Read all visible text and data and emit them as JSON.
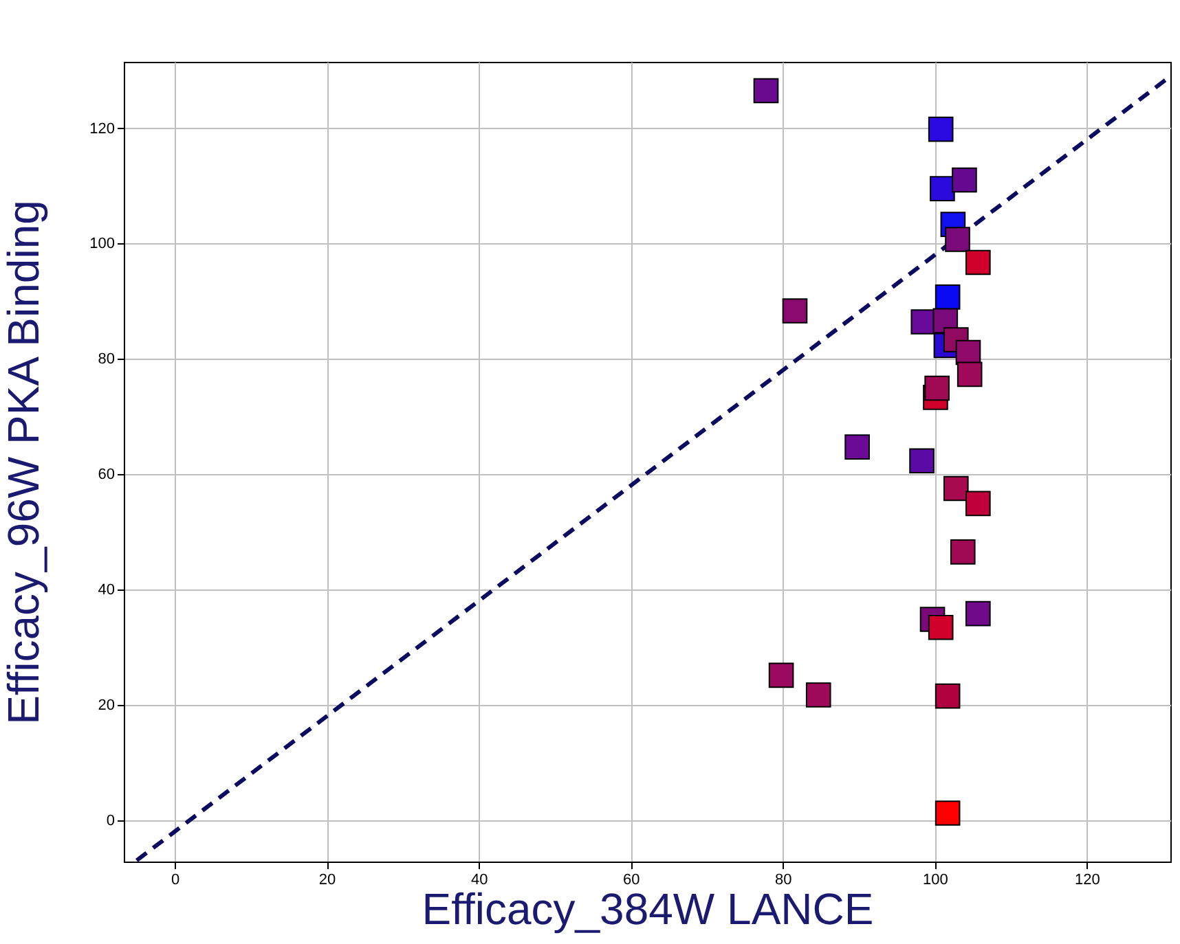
{
  "chart_data": {
    "type": "scatter",
    "xlabel": "Efficacy_384W LANCE",
    "ylabel": "Efficacy_96W PKA Binding",
    "xlim": [
      -6.7,
      131
    ],
    "ylim": [
      -7.2,
      131.5
    ],
    "xticks": [
      0,
      20,
      40,
      60,
      80,
      100,
      120
    ],
    "yticks": [
      0,
      20,
      40,
      60,
      80,
      100,
      120
    ],
    "grid": true,
    "series": [
      {
        "type": "line",
        "line_style": "dashed",
        "color": "#0a0a60",
        "x": [
          -5,
          131
        ],
        "values": [
          -7,
          129
        ]
      },
      {
        "marker": "square",
        "x": [
          77.8,
          100.8,
          101.0,
          103.9,
          102.4,
          103.0,
          105.7,
          101.7,
          98.5,
          101.4,
          101.5,
          102.8,
          104.4,
          104.6,
          81.6,
          100.1,
          100.3,
          89.8,
          98.3,
          102.8,
          105.7,
          103.7,
          99.7,
          100.8,
          105.7,
          79.8,
          84.7,
          101.7,
          101.7
        ],
        "values": [
          126.5,
          119.8,
          109.5,
          111.0,
          103.3,
          100.7,
          96.7,
          90.7,
          86.4,
          86.6,
          82.3,
          83.3,
          81.1,
          77.3,
          88.3,
          73.3,
          74.9,
          64.7,
          62.3,
          57.5,
          54.9,
          46.5,
          34.8,
          33.4,
          35.8,
          25.1,
          21.7,
          21.5,
          1.2
        ],
        "colors": [
          "#6a0a8f",
          "#2a0ae0",
          "#2a0add",
          "#650a90",
          "#1010f0",
          "#7a0a7a",
          "#d0002a",
          "#0a0af5",
          "#6a0a9a",
          "#7a0a7a",
          "#2a0ad0",
          "#900a60",
          "#8f0a6a",
          "#a00a5a",
          "#8a0a70",
          "#d0002a",
          "#a00a55",
          "#6a0a95",
          "#5a0aa5",
          "#a80a50",
          "#c0003a",
          "#a00a55",
          "#7a0a7a",
          "#d0002a",
          "#700a8a",
          "#9a0a60",
          "#a00a5a",
          "#b0003f",
          "#ff0000"
        ]
      }
    ]
  }
}
